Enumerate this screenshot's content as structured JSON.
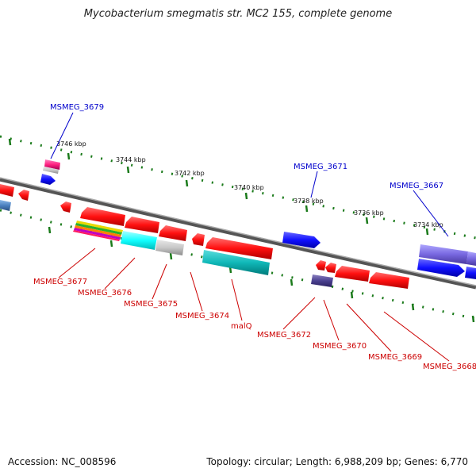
{
  "header": {
    "title": "Mycobacterium smegmatis str. MC2 155, complete genome"
  },
  "footer": {
    "accession": "Accession: NC_008596",
    "summary": "Topology: circular; Length: 6,988,209 bp; Genes: 6,770"
  },
  "ticks": [
    "3746 kbp",
    "3744 kbp",
    "3742 kbp",
    "3740 kbp",
    "3738 kbp",
    "3736 kbp",
    "3734 kbp"
  ],
  "genes_top": [
    "MSMEG_3679",
    "MSMEG_3671",
    "MSMEG_3667"
  ],
  "genes_bottom": [
    "MSMEG_3677",
    "MSMEG_3676",
    "MSMEG_3675",
    "MSMEG_3674",
    "malQ",
    "MSMEG_3672",
    "MSMEG_3670",
    "MSMEG_3669",
    "MSMEG_3668"
  ],
  "colors": {
    "forward": "#1a1aff",
    "reverse": "#ff1a1a",
    "label_forward": "#0000cc",
    "label_reverse": "#cc0000",
    "ruler": "#1a7a1a",
    "backbone": "#777777"
  }
}
